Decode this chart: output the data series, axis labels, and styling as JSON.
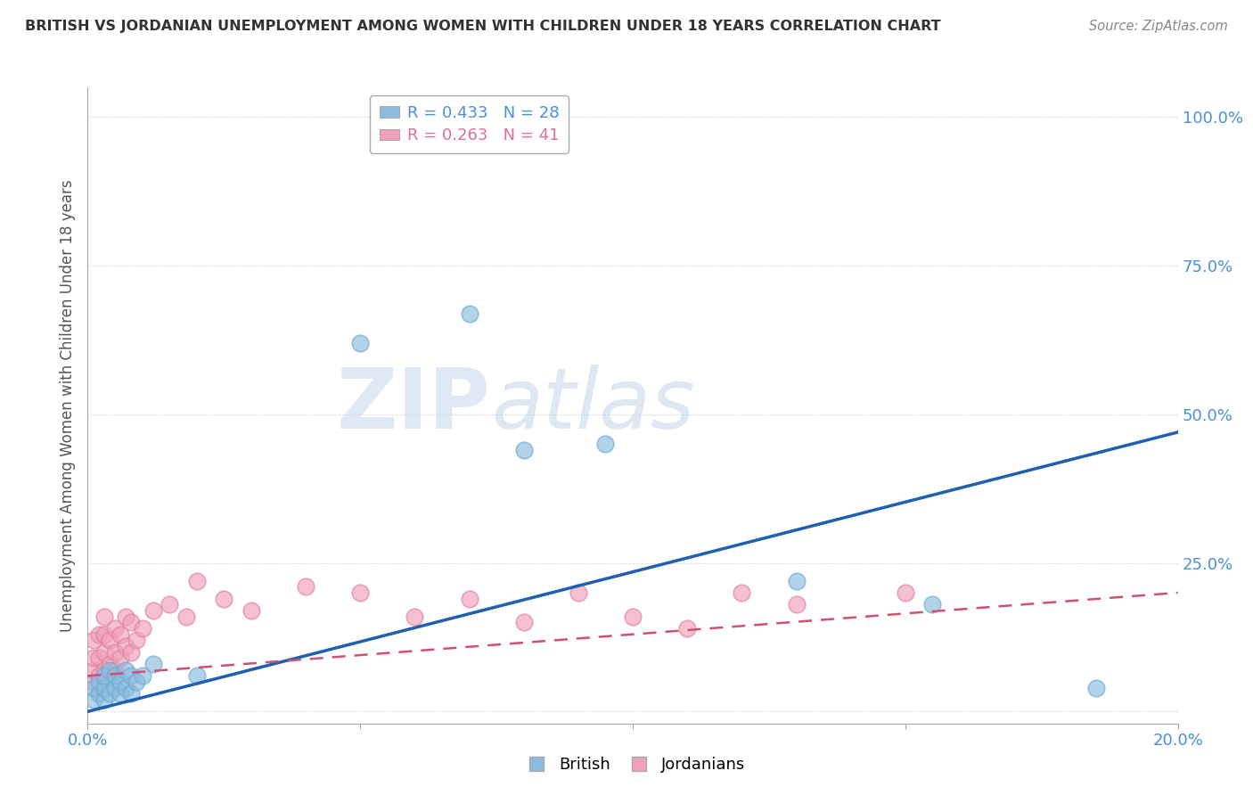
{
  "title": "BRITISH VS JORDANIAN UNEMPLOYMENT AMONG WOMEN WITH CHILDREN UNDER 18 YEARS CORRELATION CHART",
  "source": "Source: ZipAtlas.com",
  "ylabel": "Unemployment Among Women with Children Under 18 years",
  "xlim": [
    0.0,
    0.2
  ],
  "ylim": [
    -0.02,
    1.05
  ],
  "xticks": [
    0.0,
    0.05,
    0.1,
    0.15,
    0.2
  ],
  "xtick_labels": [
    "0.0%",
    "",
    "",
    "",
    "20.0%"
  ],
  "yticks": [
    0.0,
    0.25,
    0.5,
    0.75,
    1.0
  ],
  "ytick_labels": [
    "",
    "25.0%",
    "50.0%",
    "75.0%",
    "100.0%"
  ],
  "british_color": "#8bbcde",
  "british_edge_color": "#6aaad4",
  "jordanian_color": "#f0a0b8",
  "jordanian_edge_color": "#e080a0",
  "british_line_color": "#2060b0",
  "jordanian_line_color": "#d05070",
  "legend_R_british": "R = 0.433",
  "legend_N_british": "N = 28",
  "legend_R_jordanian": "R = 0.263",
  "legend_N_jordanian": "N = 41",
  "watermark_zip": "ZIP",
  "watermark_atlas": "atlas",
  "british_x": [
    0.001,
    0.001,
    0.002,
    0.002,
    0.003,
    0.003,
    0.003,
    0.004,
    0.004,
    0.005,
    0.005,
    0.006,
    0.006,
    0.007,
    0.007,
    0.008,
    0.008,
    0.009,
    0.01,
    0.012,
    0.02,
    0.05,
    0.07,
    0.08,
    0.095,
    0.13,
    0.155,
    0.185
  ],
  "british_y": [
    0.02,
    0.04,
    0.03,
    0.05,
    0.02,
    0.04,
    0.06,
    0.03,
    0.07,
    0.04,
    0.06,
    0.03,
    0.05,
    0.04,
    0.07,
    0.03,
    0.06,
    0.05,
    0.06,
    0.08,
    0.06,
    0.62,
    0.67,
    0.44,
    0.45,
    0.22,
    0.18,
    0.04
  ],
  "jordanian_x": [
    0.001,
    0.001,
    0.001,
    0.001,
    0.002,
    0.002,
    0.002,
    0.003,
    0.003,
    0.003,
    0.003,
    0.004,
    0.004,
    0.005,
    0.005,
    0.005,
    0.006,
    0.006,
    0.007,
    0.007,
    0.008,
    0.008,
    0.009,
    0.01,
    0.012,
    0.015,
    0.018,
    0.02,
    0.025,
    0.03,
    0.04,
    0.05,
    0.06,
    0.07,
    0.08,
    0.09,
    0.1,
    0.11,
    0.12,
    0.13,
    0.15
  ],
  "jordanian_y": [
    0.05,
    0.07,
    0.09,
    0.12,
    0.06,
    0.09,
    0.13,
    0.07,
    0.1,
    0.13,
    0.16,
    0.08,
    0.12,
    0.07,
    0.1,
    0.14,
    0.09,
    0.13,
    0.11,
    0.16,
    0.1,
    0.15,
    0.12,
    0.14,
    0.17,
    0.18,
    0.16,
    0.22,
    0.19,
    0.17,
    0.21,
    0.2,
    0.16,
    0.19,
    0.15,
    0.2,
    0.16,
    0.14,
    0.2,
    0.18,
    0.2
  ],
  "british_trend_x": [
    0.0,
    0.2
  ],
  "british_trend_y": [
    0.0,
    0.47
  ],
  "jordanian_trend_x": [
    0.0,
    0.2
  ],
  "jordanian_trend_y": [
    0.06,
    0.2
  ]
}
